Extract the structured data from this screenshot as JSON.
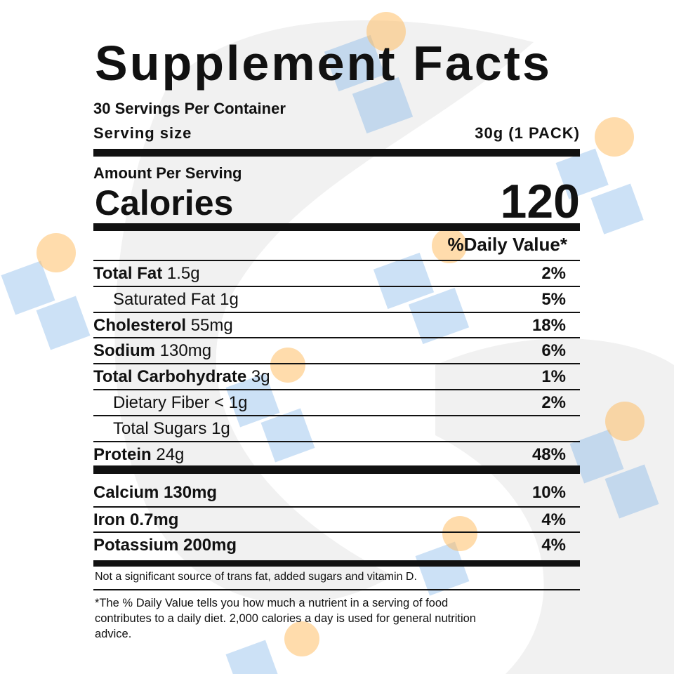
{
  "header": {
    "title": "Supplement Facts",
    "servings": "30 Servings Per Container",
    "serving_size_label": "Serving size",
    "serving_size": "30g (1 PACK)"
  },
  "calories": {
    "amount_label": "Amount Per Serving",
    "label": "Calories",
    "value": 120
  },
  "daily_value_header": "%Daily Value*",
  "nutrients": [
    {
      "name": "Total Fat",
      "amount": "1.5g",
      "dv": "2%"
    },
    {
      "name": "Saturated Fat",
      "amount": "1g",
      "dv": "5%"
    },
    {
      "name": "Cholesterol",
      "amount": "55mg",
      "dv": "18%"
    },
    {
      "name": "Sodium",
      "amount": "130mg",
      "dv": "6%"
    },
    {
      "name": "Total Carbohydrate",
      "amount": "3g",
      "dv": "1%"
    },
    {
      "name": "Dietary Fiber",
      "amount": "< 1g",
      "dv": "2%"
    },
    {
      "name": "Total Sugars",
      "amount": "1g"
    },
    {
      "name": "Protein",
      "amount": "24g",
      "dv": "48%"
    }
  ],
  "minerals": [
    {
      "name": "Calcium",
      "amount": "130mg",
      "dv": "10%"
    },
    {
      "name": "Iron",
      "amount": "0.7mg",
      "dv": "4%"
    },
    {
      "name": "Potassium",
      "amount": "200mg",
      "dv": "4%"
    }
  ],
  "footnotes": [
    "Not a significant source of trans fat, added sugars and vitamin D.",
    "*The % Daily Value tells you how much a nutrient in a serving of food contributes to a daily diet. 2,000 calories a day is used for general nutrition advice."
  ]
}
